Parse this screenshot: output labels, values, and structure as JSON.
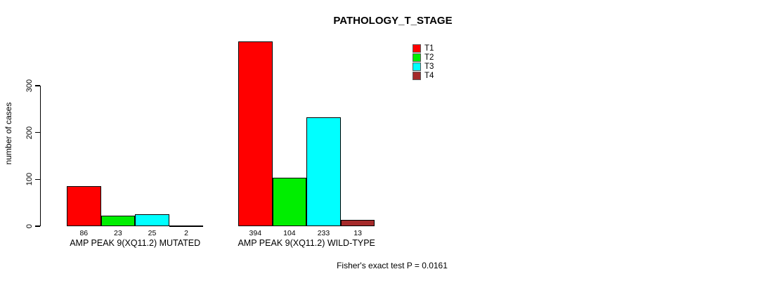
{
  "title": "PATHOLOGY_T_STAGE",
  "footer": "Fisher's exact test P = 0.0161",
  "chart_data": {
    "type": "bar",
    "grouped": true,
    "title": "PATHOLOGY_T_STAGE",
    "xlabel": "",
    "ylabel": "number of cases",
    "categories": [
      "AMP PEAK 9(XQ11.2) MUTATED",
      "AMP PEAK 9(XQ11.2) WILD-TYPE"
    ],
    "series": [
      {
        "name": "T1",
        "color": "#ff0000",
        "values": [
          86,
          394
        ]
      },
      {
        "name": "T2",
        "color": "#00ee00",
        "values": [
          23,
          104
        ]
      },
      {
        "name": "T3",
        "color": "#00ffff",
        "values": [
          25,
          233
        ]
      },
      {
        "name": "T4",
        "color": "#a52a2a",
        "values": [
          2,
          13
        ]
      }
    ],
    "value_labels": [
      [
        "86",
        "23",
        "25",
        "2"
      ],
      [
        "394",
        "104",
        "233",
        "13"
      ]
    ],
    "yticks": [
      0,
      100,
      200,
      300
    ],
    "ylim": [
      0,
      300
    ],
    "grid": false,
    "legend_position": "top-right",
    "annotation": "Fisher's exact test P = 0.0161",
    "bar_border_color": "#000000",
    "axis_color": "#000000"
  }
}
